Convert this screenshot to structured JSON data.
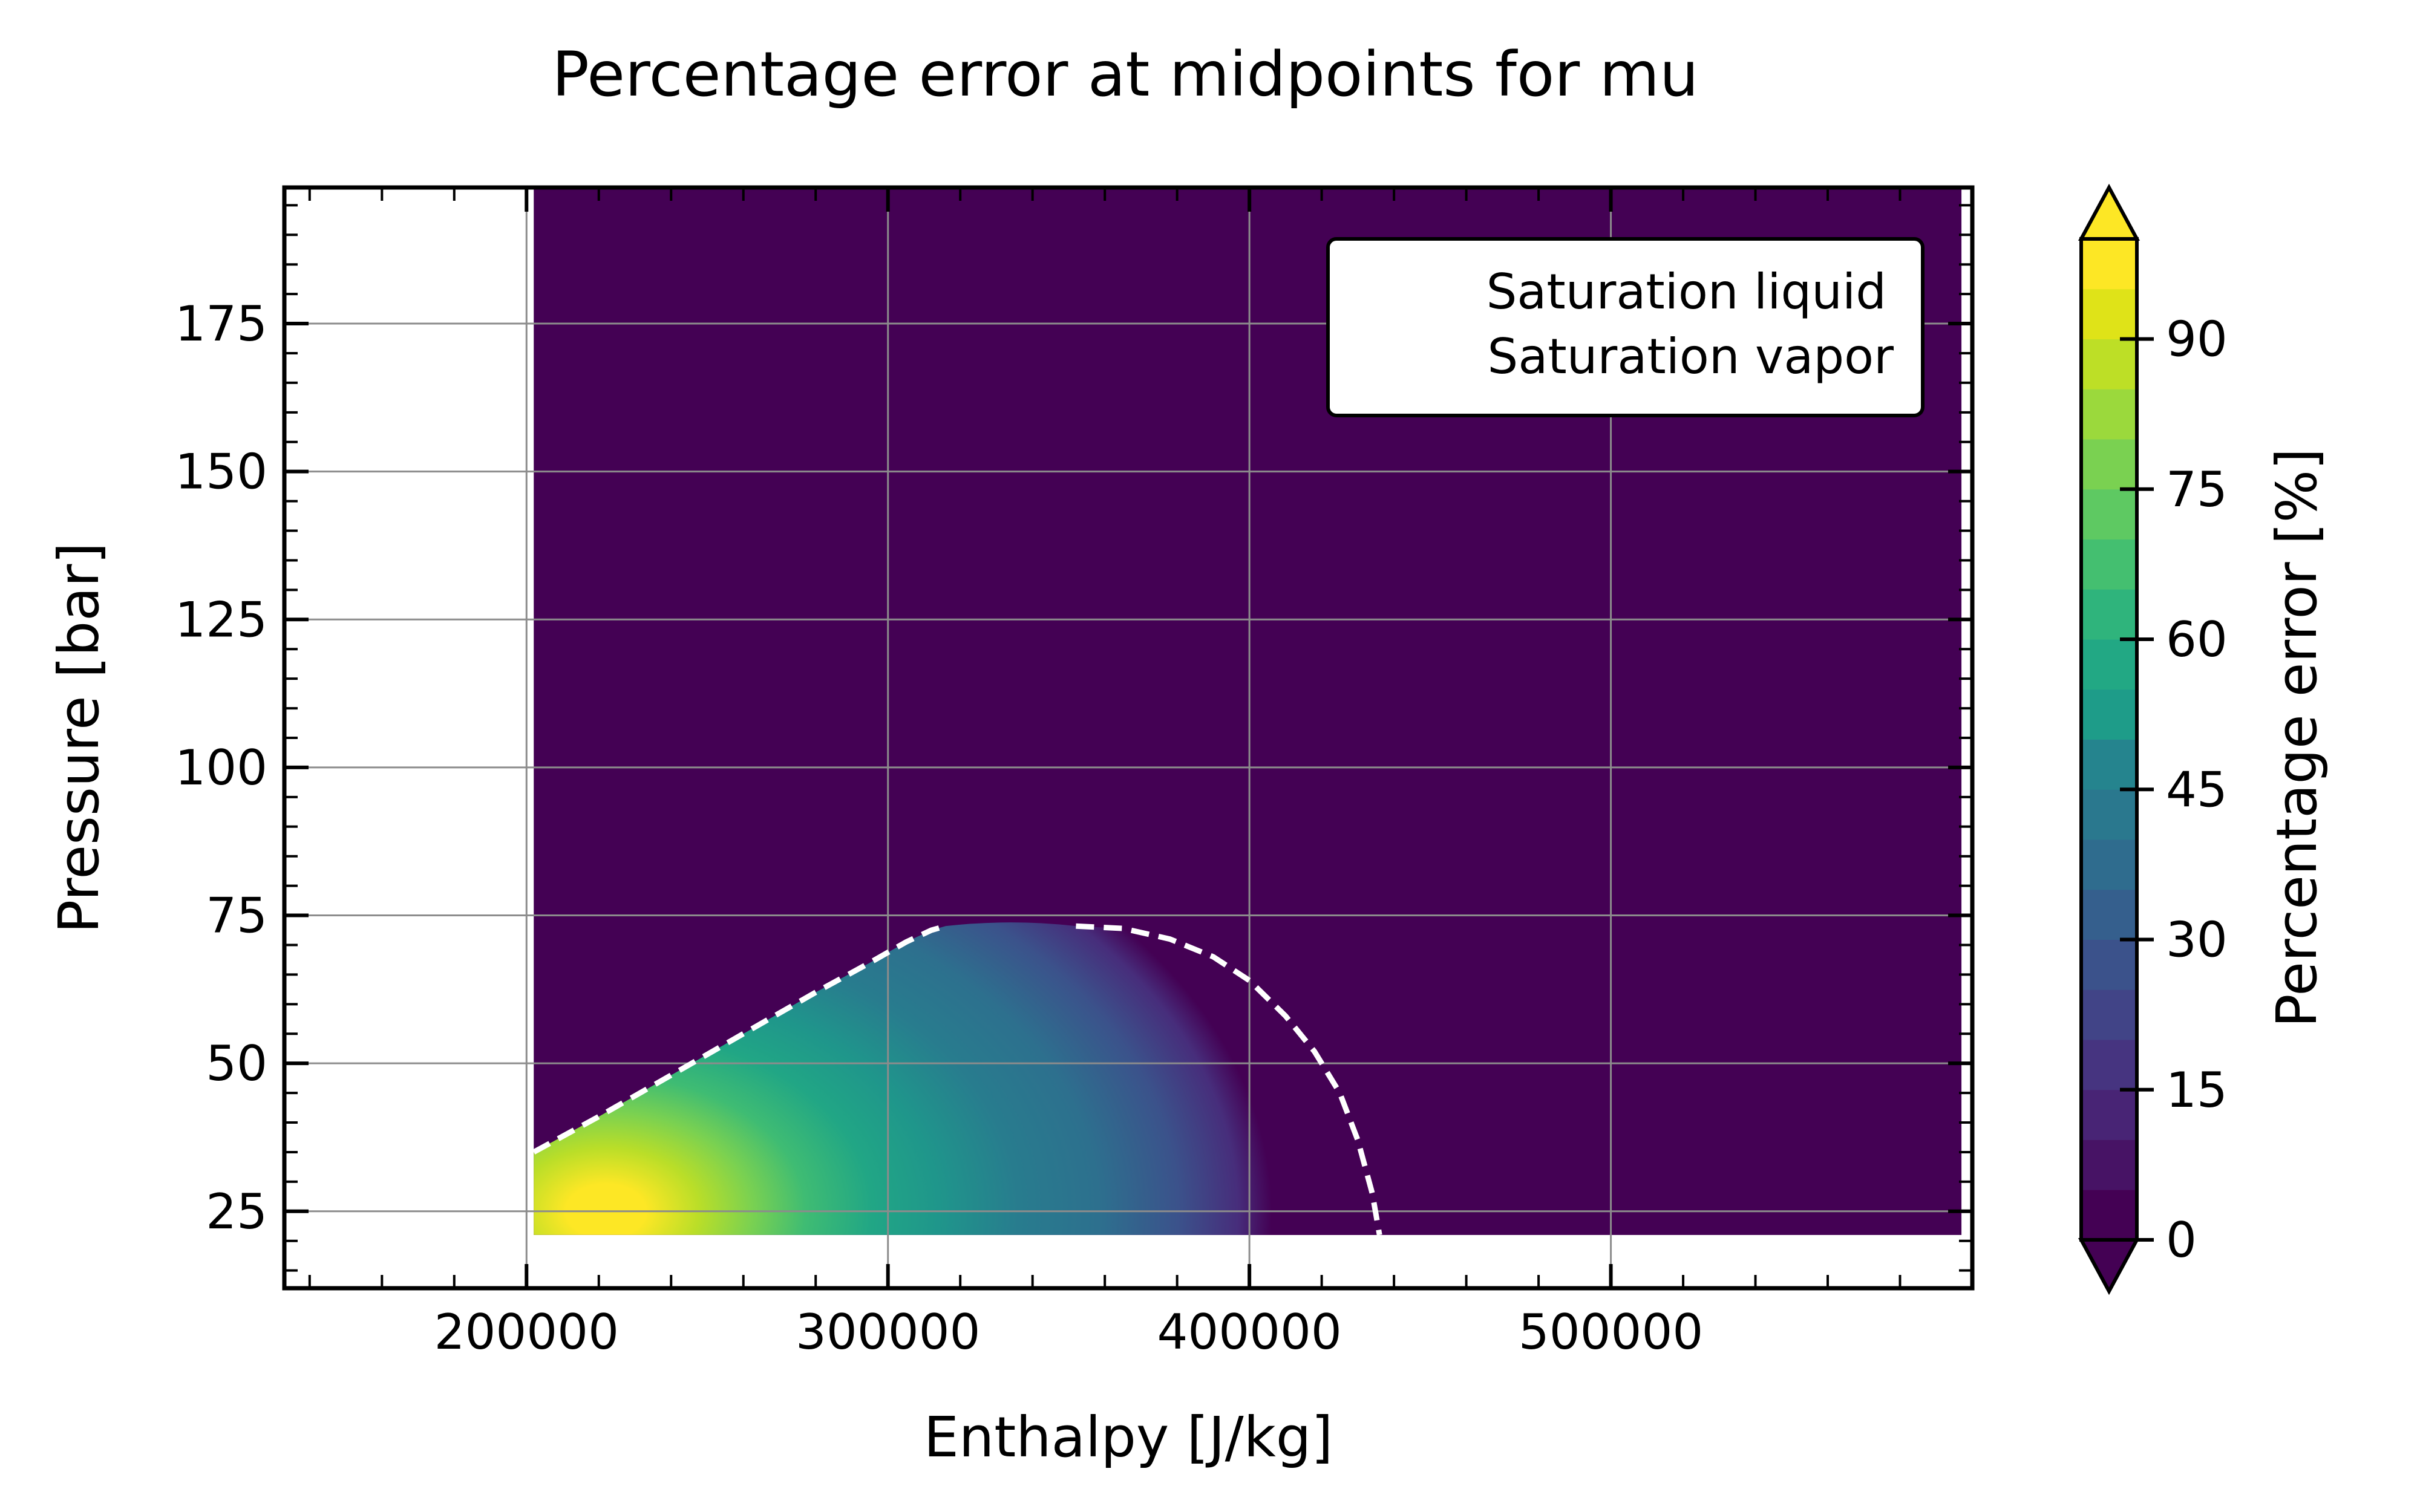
{
  "chart_data": {
    "type": "contour",
    "title": "Percentage error at midpoints for mu",
    "xlabel": "Enthalpy [J/kg]",
    "ylabel": "Pressure [bar]",
    "xlim": [
      133000,
      600000
    ],
    "ylim": [
      12,
      198
    ],
    "x_ticks": [
      "200000",
      "300000",
      "400000",
      "500000"
    ],
    "x_tick_values": [
      200000,
      300000,
      400000,
      500000
    ],
    "y_ticks": [
      "25",
      "50",
      "75",
      "100",
      "125",
      "150",
      "175"
    ],
    "y_tick_values": [
      25,
      50,
      75,
      100,
      125,
      150,
      175
    ],
    "grid": true,
    "legend": {
      "placement": "top-right",
      "entries": [
        {
          "label": "Saturation liquid",
          "style": "dashed",
          "color": "#ffffff"
        },
        {
          "label": "Saturation vapor",
          "style": "dashed",
          "color": "#ffffff"
        }
      ]
    },
    "data_domain": {
      "x_min": 202000,
      "x_max": 597000,
      "y_min": 21,
      "y_max": 198
    },
    "error_field_peak": {
      "x": 222000,
      "y": 25,
      "value": 100
    },
    "saturation_liquid": {
      "x": [
        202000,
        220000,
        240000,
        260000,
        280000,
        295000,
        305000,
        312000,
        316000
      ],
      "y": [
        35,
        41,
        48,
        55,
        62,
        67,
        70.5,
        72.5,
        73.2
      ]
    },
    "saturation_vapor": {
      "x": [
        352000,
        365000,
        378000,
        390000,
        400000,
        410000,
        418000,
        425000,
        430000,
        434000,
        436000
      ],
      "y": [
        73.2,
        72.8,
        71,
        68,
        64,
        58,
        52,
        45,
        37,
        28,
        21
      ]
    },
    "colorbar": {
      "label": "Percentage error [%]",
      "min": 0,
      "max": 100,
      "extend": "both",
      "levels": 20,
      "ticks": [
        "0",
        "15",
        "30",
        "45",
        "60",
        "75",
        "90"
      ],
      "tick_values": [
        0,
        15,
        30,
        45,
        60,
        75,
        90
      ]
    },
    "colormap": "viridis",
    "background_color": "#440154"
  }
}
